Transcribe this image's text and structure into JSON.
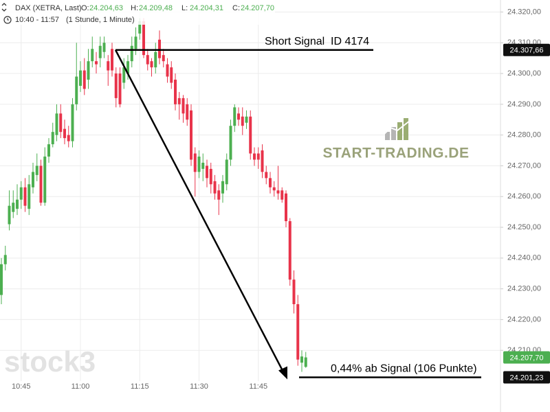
{
  "chart_data": {
    "type": "candlestick",
    "header": {
      "instrument": "DAX (XETRA, Last)",
      "ohlc": [
        {
          "label": "O:",
          "value": "24.204,63"
        },
        {
          "label": "H:",
          "value": "24.209,48"
        },
        {
          "label": "L:",
          "value": "24.204,31"
        },
        {
          "label": "C:",
          "value": "24.207,70"
        }
      ],
      "range": "10:40 - 11:57",
      "interval": "(1 Stunde, 1 Minute)"
    },
    "categories": [
      null,
      null,
      null,
      null,
      null,
      "10:45",
      null,
      null,
      null,
      null,
      null,
      null,
      null,
      null,
      null,
      null,
      null,
      null,
      null,
      null,
      "11:00",
      null,
      null,
      null,
      null,
      null,
      null,
      null,
      null,
      null,
      null,
      null,
      null,
      null,
      null,
      "11:15",
      null,
      null,
      null,
      null,
      null,
      null,
      null,
      null,
      null,
      null,
      null,
      null,
      null,
      null,
      "11:30",
      null,
      null,
      null,
      null,
      null,
      null,
      null,
      null,
      null,
      null,
      null,
      null,
      null,
      null,
      "11:45",
      null,
      null,
      null,
      null,
      null,
      null,
      null,
      null,
      null,
      null,
      null,
      null
    ],
    "open": [
      24228,
      24238,
      24251,
      24255,
      24256,
      24259,
      24263,
      24256,
      24263,
      24267,
      24270,
      24258,
      24273,
      24277,
      24280,
      24287,
      24282,
      24280,
      24278,
      24290,
      24296,
      24301,
      24298,
      24304,
      24304,
      24305,
      24307,
      24304,
      24308,
      24300,
      24300,
      24297,
      24300,
      24304,
      24308,
      24313,
      24317,
      24306,
      24304,
      24302,
      24311,
      24306,
      24303,
      24302,
      24298,
      24292,
      24292,
      24290,
      24288,
      24274,
      24268,
      24269,
      24270,
      24269,
      24265,
      24262,
      24261,
      24264,
      24272,
      24283,
      24287,
      24286,
      24284,
      24286,
      24274,
      24274,
      24275,
      24268,
      24266,
      24263,
      24262,
      24262,
      24261,
      24252,
      24233,
      24225,
      24206,
      24204.63
    ],
    "high": [
      24240,
      24244,
      24262,
      24262,
      24264,
      24265,
      24266,
      24267,
      24271,
      24274,
      24272,
      24276,
      24279,
      24284,
      24290,
      24290,
      24285,
      24283,
      24292,
      24310,
      24304,
      24305,
      24308,
      24312,
      24307,
      24312,
      24312,
      24306,
      24310,
      24302,
      24302,
      24305,
      24306,
      24312,
      24315,
      24318,
      24318,
      24308,
      24305,
      24310,
      24314,
      24308,
      24305,
      24304,
      24300,
      24294,
      24293,
      24292,
      24290,
      24276,
      24275,
      24274,
      24272,
      24271,
      24267,
      24264,
      24267,
      24274,
      24285,
      24290,
      24289,
      24289,
      24288,
      24288,
      24276,
      24276,
      24277,
      24270,
      24268,
      24265,
      24270,
      24263,
      24262,
      24253,
      24236,
      24228,
      24210,
      24209.48
    ],
    "low": [
      24225,
      24236,
      24249,
      24253,
      24254,
      24256,
      24255,
      24254,
      24261,
      24265,
      24257,
      24257,
      24271,
      24276,
      24278,
      24279,
      24277,
      24276,
      24276,
      24288,
      24294,
      24293,
      24295,
      24302,
      24300,
      24302,
      24305,
      24296,
      24299,
      24289,
      24289,
      24295,
      24298,
      24302,
      24306,
      24311,
      24305,
      24301,
      24299,
      24300,
      24303,
      24302,
      24297,
      24295,
      24288,
      24285,
      24284,
      24283,
      24270,
      24260,
      24266,
      24265,
      24263,
      24261,
      24259,
      24254,
      24258,
      24262,
      24270,
      24281,
      24283,
      24280,
      24282,
      24272,
      24270,
      24269,
      24266,
      24264,
      24261,
      24260,
      24259,
      24258,
      24250,
      24231,
      24222,
      24205,
      24203,
      24204.31
    ],
    "close": [
      24238,
      24241,
      24257,
      24258,
      24259,
      24263,
      24257,
      24264,
      24268,
      24270,
      24258,
      24273,
      24277,
      24281,
      24287,
      24281,
      24279,
      24278,
      24290,
      24299,
      24301,
      24295,
      24304,
      24308,
      24303,
      24309,
      24310,
      24301,
      24301,
      24292,
      24290,
      24302,
      24304,
      24309,
      24312,
      24317,
      24306,
      24303,
      24302,
      24307,
      24305,
      24304,
      24299,
      24297,
      24290,
      24290,
      24287,
      24285,
      24272,
      24268,
      24273,
      24271,
      24266,
      24264,
      24261,
      24259,
      24265,
      24272,
      24283,
      24289,
      24285,
      24283,
      24286,
      24274,
      24272,
      24272,
      24268,
      24266,
      24263,
      24262,
      24261,
      24259,
      24252,
      24233,
      24225,
      24207,
      24208,
      24207.7
    ],
    "up_color": "#4caf50",
    "down_color": "#e8334a",
    "ylim": [
      24200,
      24323.9
    ],
    "yticks": [
      {
        "value": 24210,
        "label": "24.210,00"
      },
      {
        "value": 24220,
        "label": "24.220,00"
      },
      {
        "value": 24230,
        "label": "24.230,00"
      },
      {
        "value": 24240,
        "label": "24.240,00"
      },
      {
        "value": 24250,
        "label": "24.250,00"
      },
      {
        "value": 24260,
        "label": "24.260,00"
      },
      {
        "value": 24270,
        "label": "24.270,00"
      },
      {
        "value": 24280,
        "label": "24.280,00"
      },
      {
        "value": 24290,
        "label": "24.290,00"
      },
      {
        "value": 24300,
        "label": "24.300,00"
      },
      {
        "value": 24310,
        "label": "24.310,00"
      },
      {
        "value": 24320,
        "label": "24.320,00"
      }
    ],
    "grid": true,
    "price_tags": [
      {
        "value": 24307.66,
        "label": "24.307,66",
        "color": "#111111"
      },
      {
        "value": 24207.7,
        "label": "24.207,70",
        "color": "#4caf50"
      },
      {
        "value": 24201.23,
        "label": "24.201,23",
        "color": "#111111"
      }
    ],
    "annotations": {
      "signal": {
        "text": "Short Signal  ID 4174",
        "value": 24307.66
      },
      "target": {
        "text": "0,44% ab Signal (106 Punkte)",
        "value": 24201.23
      }
    },
    "watermarks": {
      "brand": "START-TRADING.DE",
      "source": "stock3"
    }
  }
}
